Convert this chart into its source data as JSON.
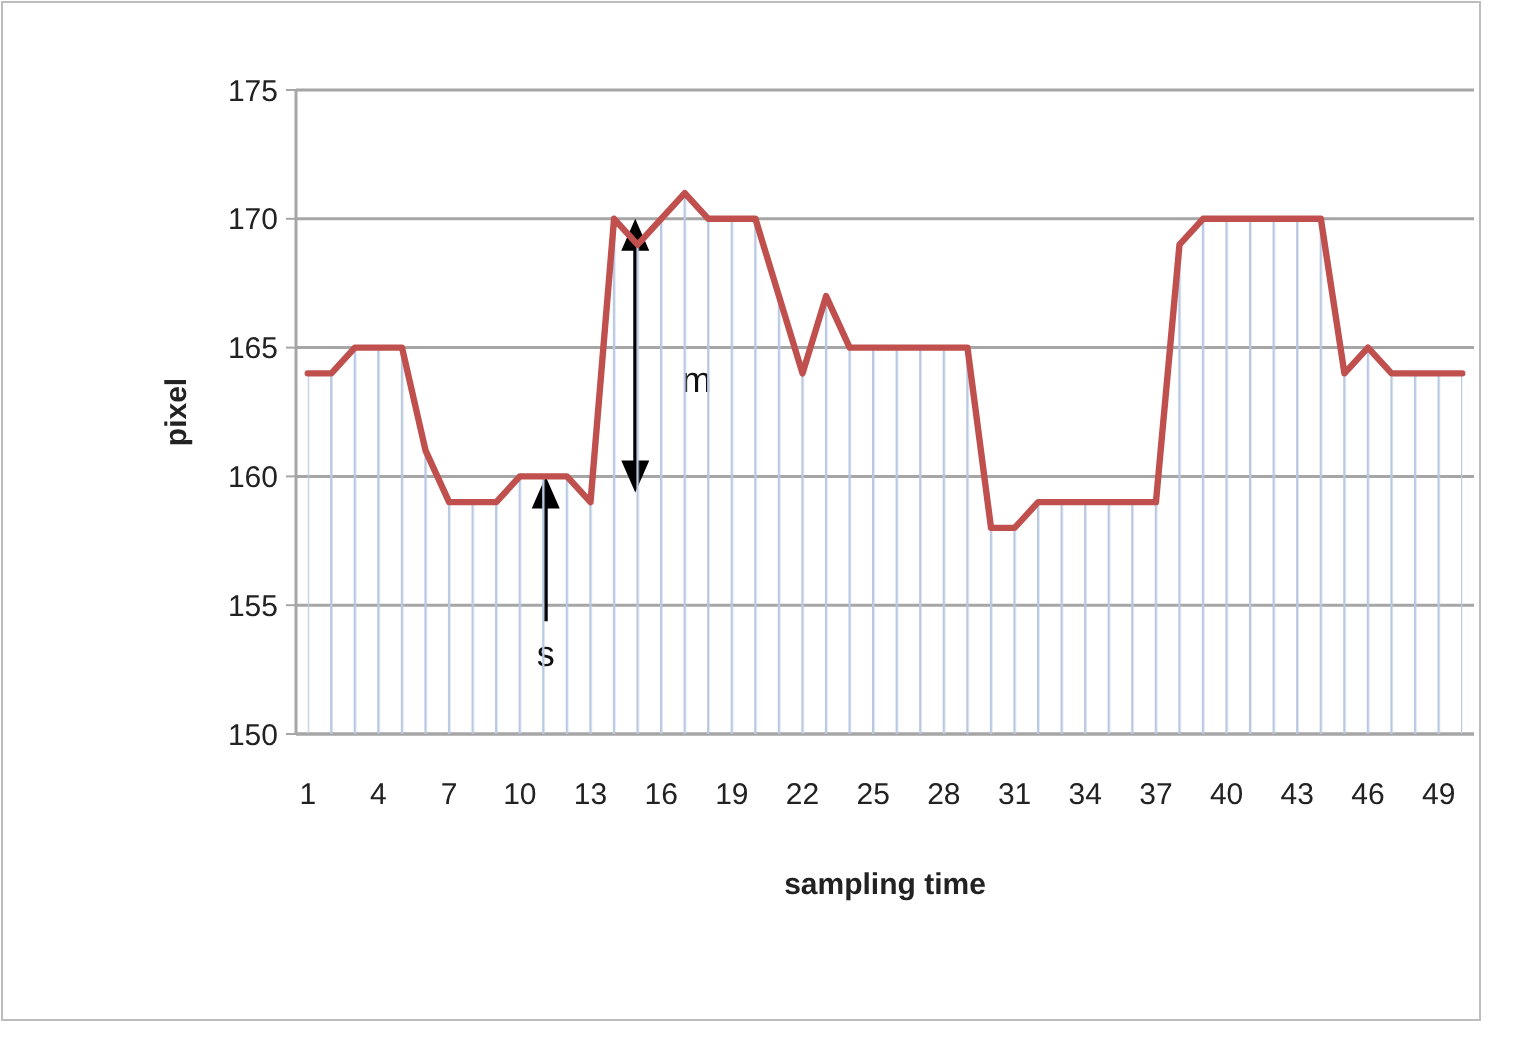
{
  "chart_data": {
    "type": "area",
    "xlabel": "sampling time",
    "ylabel": "pixel",
    "x": [
      1,
      2,
      3,
      4,
      5,
      6,
      7,
      8,
      9,
      10,
      11,
      12,
      13,
      14,
      15,
      16,
      17,
      18,
      19,
      20,
      21,
      22,
      23,
      24,
      25,
      26,
      27,
      28,
      29,
      30,
      31,
      32,
      33,
      34,
      35,
      36,
      37,
      38,
      39,
      40,
      41,
      42,
      43,
      44,
      45,
      46,
      47,
      48,
      49,
      50
    ],
    "series": [
      {
        "color": "#c0504d",
        "values": [
          164,
          164,
          165,
          165,
          165,
          161,
          159,
          159,
          159,
          160,
          160,
          160,
          159,
          170,
          169,
          170,
          171,
          170,
          170,
          170,
          167,
          164,
          167,
          165,
          165,
          165,
          165,
          165,
          165,
          158,
          158,
          159,
          159,
          159,
          159,
          159,
          159,
          169,
          170,
          170,
          170,
          170,
          170,
          170,
          164,
          165,
          164,
          164,
          164,
          164
        ]
      }
    ],
    "xlim": [
      0.5,
      50.5
    ],
    "xticks": [
      1,
      4,
      7,
      10,
      13,
      16,
      19,
      22,
      25,
      28,
      31,
      34,
      37,
      40,
      43,
      46,
      49
    ],
    "ylim": [
      150,
      175
    ],
    "yticks": [
      150,
      155,
      160,
      165,
      170,
      175
    ],
    "grid": "y",
    "marker": "none",
    "line_style": "solid",
    "annotations": [
      "m",
      "s"
    ]
  }
}
